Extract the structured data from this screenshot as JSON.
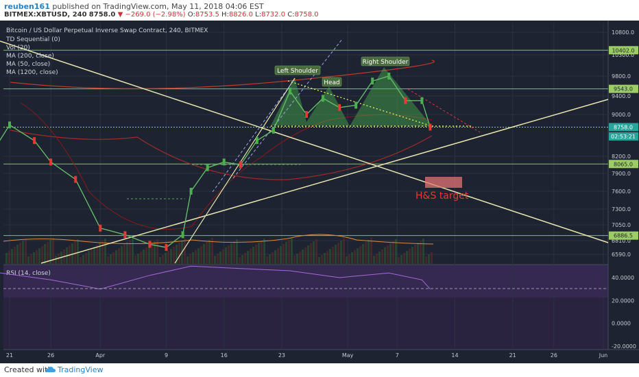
{
  "header": {
    "username": "reuben161",
    "published_text": "published on TradingView.com, May 11, 2018 04:06 EST",
    "ticker": "BITMEX:XBTUSD, 240",
    "last": "8758.0",
    "change": "−269.0 (−2.98%)",
    "o_label": "O:",
    "o": "8753.5",
    "h_label": "H:",
    "h": "8826.0",
    "l_label": "L:",
    "l": "8732.0",
    "c_label": "C:",
    "c": "8758.0"
  },
  "chart_data": {
    "type": "line",
    "title": "Bitcoin / US Dollar Perpetual Inverse Swap Contract, 240, BITMEX",
    "indicators": [
      "TD Sequential (0)",
      "Vol (20)",
      "MA (200, close)",
      "MA (50, close)",
      "MA (1200, close)"
    ],
    "price_axis_ticks": [
      "10800.0",
      "10300.0",
      "9800.0",
      "9400.0",
      "9000.0",
      "8200.0",
      "7900.0",
      "7600.0",
      "7300.0",
      "7050.0",
      "6810.0",
      "6590.0"
    ],
    "price_ylim": [
      6450,
      11000
    ],
    "horizontal_levels": [
      {
        "label": "10402.0",
        "value": 10402.0
      },
      {
        "label": "9543.0",
        "value": 9543.0
      },
      {
        "label": "8758.0",
        "value": 8758.0
      },
      {
        "label": "8065.0",
        "value": 8065.0
      },
      {
        "label": "6886.5",
        "value": 6886.5
      }
    ],
    "countdown": "02:53:21",
    "time_axis_ticks": [
      "21",
      "26",
      "Apr",
      "9",
      "16",
      "23",
      "May",
      "7",
      "14",
      "21",
      "26",
      "Jun"
    ],
    "annotations": [
      "Left Shoulder",
      "Head",
      "Right Shoulder",
      "H&S target"
    ],
    "series": [
      {
        "name": "price",
        "x": [
          "Mar 19",
          "Mar 21",
          "Mar 24",
          "Mar 26",
          "Mar 29",
          "Apr 1",
          "Apr 4",
          "Apr 7",
          "Apr 9",
          "Apr 11",
          "Apr 12",
          "Apr 14",
          "Apr 16",
          "Apr 18",
          "Apr 20",
          "Apr 22",
          "Apr 24",
          "Apr 26",
          "Apr 28",
          "Apr 30",
          "May 2",
          "May 4",
          "May 6",
          "May 8",
          "May 10",
          "May 11"
        ],
        "y": [
          8300,
          8800,
          8500,
          8100,
          7800,
          7000,
          6900,
          6750,
          6700,
          6900,
          7600,
          8000,
          8100,
          8050,
          8500,
          8700,
          9500,
          9000,
          9350,
          9150,
          9200,
          9700,
          9800,
          9300,
          9300,
          8758
        ]
      }
    ],
    "rsi": {
      "label": "RSI (14, close)",
      "axis_ticks": [
        "40.0000",
        "20.0000",
        "0.0000",
        "-20.0000"
      ],
      "ylim": [
        -25,
        55
      ],
      "overbought_line": 30,
      "x": [
        "Mar 19",
        "Mar 26",
        "Apr 1",
        "Apr 7",
        "Apr 12",
        "Apr 18",
        "Apr 24",
        "Apr 30",
        "May 6",
        "May 10",
        "May 11"
      ],
      "y": [
        45,
        38,
        30,
        42,
        50,
        48,
        46,
        40,
        44,
        38,
        30
      ]
    }
  },
  "footer": {
    "created_with": "Created with",
    "brand": "TradingView"
  }
}
